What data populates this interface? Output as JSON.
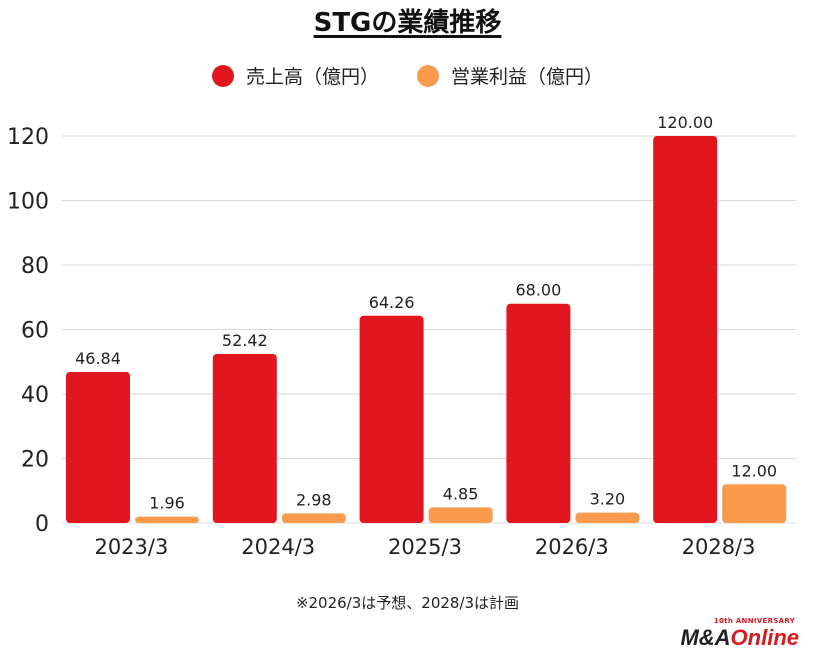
{
  "title": "STGの業績推移",
  "legend": [
    {
      "label": "売上高（億円）",
      "color": "#e2161e"
    },
    {
      "label": "営業利益（億円）",
      "color": "#fb9a4d"
    }
  ],
  "chart_data": {
    "type": "bar",
    "categories": [
      "2023/3",
      "2024/3",
      "2025/3",
      "2026/3",
      "2028/3"
    ],
    "series": [
      {
        "name": "売上高（億円）",
        "color": "#e2161e",
        "values": [
          46.84,
          52.42,
          64.26,
          68.0,
          120.0
        ],
        "labels": [
          "46.84",
          "52.42",
          "64.26",
          "68.00",
          "120.00"
        ]
      },
      {
        "name": "営業利益（億円）",
        "color": "#fb9a4d",
        "values": [
          1.96,
          2.98,
          4.85,
          3.2,
          12.0
        ],
        "labels": [
          "1.96",
          "2.98",
          "4.85",
          "3.20",
          "12.00"
        ]
      }
    ],
    "ylim": [
      0,
      120
    ],
    "yticks": [
      0,
      20,
      40,
      60,
      80,
      100,
      120
    ],
    "grid": true,
    "legend_position": "top"
  },
  "note": "※2026/3は予想、2028/3は計画",
  "logo": {
    "top": "10th ANNIVERSARY",
    "main_prefix": "M&A",
    "main_suffix": "Online"
  }
}
